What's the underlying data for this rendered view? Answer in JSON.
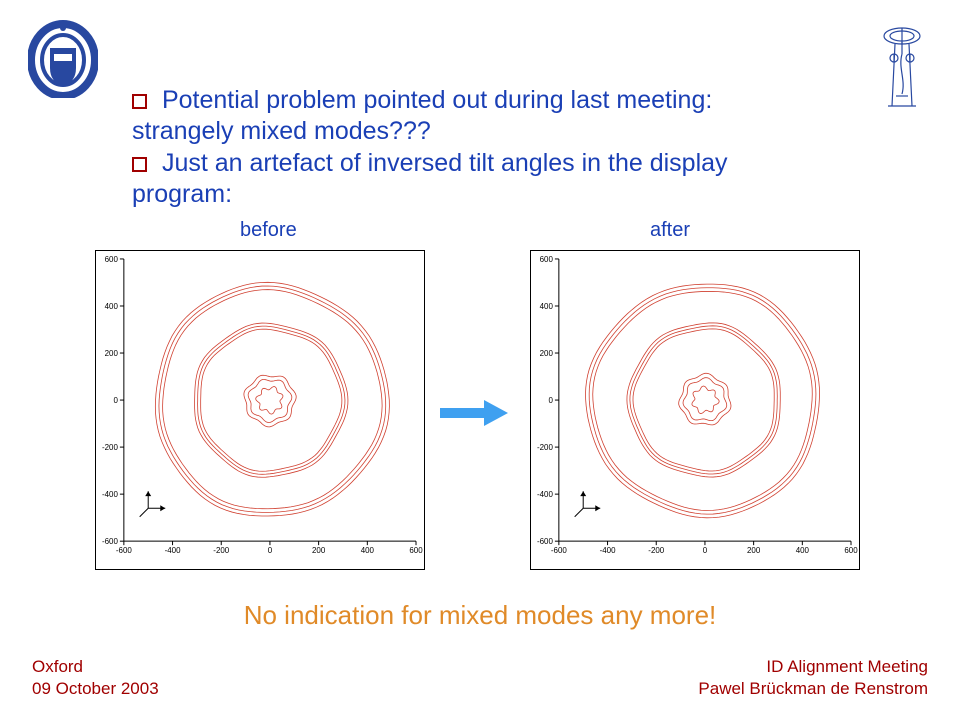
{
  "text": {
    "bullet1": "Potential problem pointed out during last meeting: strangely mixed modes???",
    "bullet2": "Just an artefact of inversed tilt angles in the display program:",
    "label_before": "before",
    "label_after": "after",
    "conclusion": "No indication for mixed modes any more!"
  },
  "footer": {
    "left_line1": "Oxford",
    "left_line2": "09 October 2003",
    "right_line1": "ID Alignment Meeting",
    "right_line2": "Pawel Brückman de Renstrom"
  },
  "colors": {
    "text_blue": "#1a3fb5",
    "bullet_border": "#a00000",
    "orange": "#e08a28",
    "dark_red": "#a00000",
    "arrow_blue": "#3fa0f0",
    "crest_blue": "#2848a0",
    "ring_red": "#d04030",
    "axis": "#000000",
    "plot_bg": "#ffffff"
  },
  "plot": {
    "axis_range": [
      -600,
      600
    ],
    "tick_step": 200,
    "tick_values": [
      -600,
      -400,
      -200,
      0,
      200,
      400,
      600
    ],
    "tick_fontsize": 8,
    "ring_line_width": 0.8,
    "ring_groups": [
      {
        "base_radius": 450,
        "band_width": 30,
        "count": 3
      },
      {
        "base_radius": 290,
        "band_width": 25,
        "count": 3
      },
      {
        "base_radius": 85,
        "band_width": 18,
        "count": 2
      },
      {
        "base_radius": 50,
        "band_width": 8,
        "count": 1
      }
    ],
    "marker_frame_origin": [
      -500,
      -460
    ],
    "marker_frame_size": 70,
    "aspect": 1.0
  },
  "arrow": {
    "width": 70,
    "height": 28,
    "color": "#3fa0f0"
  }
}
